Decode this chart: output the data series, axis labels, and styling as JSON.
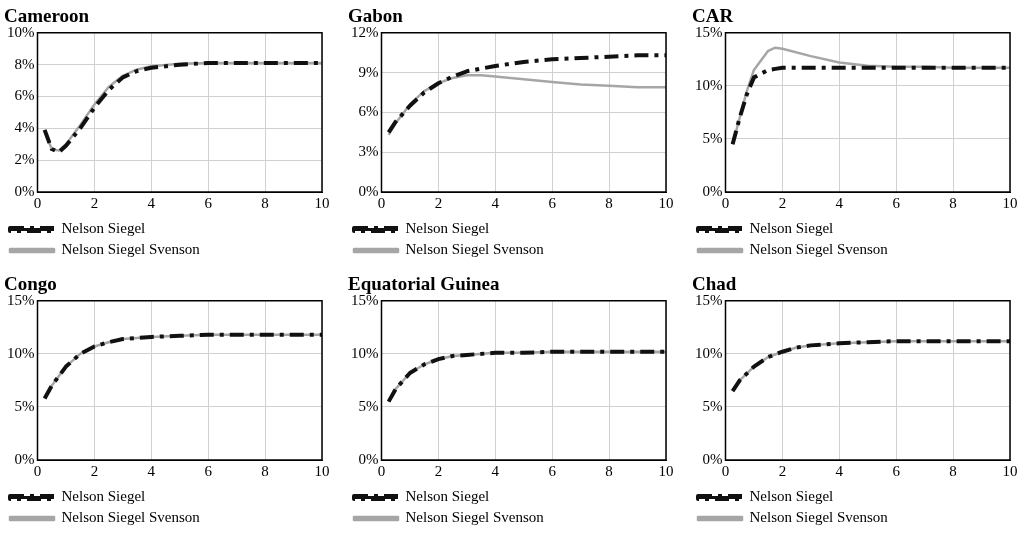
{
  "chart_data": [
    {
      "type": "line",
      "title": "Cameroon",
      "x": [
        0.25,
        0.5,
        0.75,
        1,
        1.5,
        2,
        2.5,
        3,
        3.5,
        4,
        5,
        6,
        7,
        8,
        9,
        10
      ],
      "xlim": [
        0,
        10
      ],
      "xticks": [
        0,
        2,
        4,
        6,
        8,
        10
      ],
      "ylim": [
        0,
        10
      ],
      "yticks": [
        {
          "value": 0,
          "label": "0%"
        },
        {
          "value": 2,
          "label": "2%"
        },
        {
          "value": 4,
          "label": "4%"
        },
        {
          "value": 6,
          "label": "6%"
        },
        {
          "value": 8,
          "label": "8%"
        },
        {
          "value": 10,
          "label": "10%"
        }
      ],
      "grid": true,
      "legend": "bottom",
      "series": [
        {
          "name": "Nelson Siegel",
          "color": "#111111",
          "line_style": "dashed",
          "values": [
            3.9,
            2.7,
            2.5,
            2.9,
            4.0,
            5.3,
            6.4,
            7.2,
            7.6,
            7.8,
            8.0,
            8.1,
            8.1,
            8.1,
            8.1,
            8.1
          ]
        },
        {
          "name": "Nelson Siegel Svenson",
          "color": "#a6a6a6",
          "line_style": "solid",
          "values": [
            3.8,
            2.7,
            2.6,
            3.0,
            4.2,
            5.5,
            6.6,
            7.3,
            7.7,
            7.9,
            8.05,
            8.1,
            8.1,
            8.1,
            8.1,
            8.1
          ]
        }
      ]
    },
    {
      "type": "line",
      "title": "Gabon",
      "x": [
        0.25,
        0.5,
        1,
        1.5,
        2,
        2.5,
        3,
        3.5,
        4,
        5,
        6,
        7,
        8,
        9,
        10
      ],
      "xlim": [
        0,
        10
      ],
      "xticks": [
        0,
        2,
        4,
        6,
        8,
        10
      ],
      "ylim": [
        0,
        12
      ],
      "yticks": [
        {
          "value": 0,
          "label": "0%"
        },
        {
          "value": 3,
          "label": "3%"
        },
        {
          "value": 6,
          "label": "6%"
        },
        {
          "value": 9,
          "label": "9%"
        },
        {
          "value": 12,
          "label": "12%"
        }
      ],
      "grid": true,
      "legend": "bottom",
      "series": [
        {
          "name": "Nelson Siegel",
          "color": "#111111",
          "line_style": "dashed",
          "values": [
            4.5,
            5.3,
            6.5,
            7.5,
            8.2,
            8.7,
            9.1,
            9.3,
            9.5,
            9.8,
            10.0,
            10.1,
            10.2,
            10.3,
            10.3
          ]
        },
        {
          "name": "Nelson Siegel Svenson",
          "color": "#a6a6a6",
          "line_style": "solid",
          "values": [
            4.3,
            5.2,
            6.6,
            7.6,
            8.2,
            8.6,
            8.8,
            8.8,
            8.7,
            8.5,
            8.3,
            8.1,
            8.0,
            7.9,
            7.9
          ]
        }
      ]
    },
    {
      "type": "line",
      "title": "CAR",
      "x": [
        0.25,
        0.5,
        0.75,
        1,
        1.5,
        1.75,
        2,
        3,
        4,
        5,
        6,
        7,
        8,
        9,
        10
      ],
      "xlim": [
        0,
        10
      ],
      "xticks": [
        0,
        2,
        4,
        6,
        8,
        10
      ],
      "ylim": [
        0,
        15
      ],
      "yticks": [
        {
          "value": 0,
          "label": "0%"
        },
        {
          "value": 5,
          "label": "5%"
        },
        {
          "value": 10,
          "label": "10%"
        },
        {
          "value": 15,
          "label": "15%"
        }
      ],
      "grid": true,
      "legend": "bottom",
      "series": [
        {
          "name": "Nelson Siegel",
          "color": "#111111",
          "line_style": "dashed",
          "values": [
            4.5,
            7.0,
            9.2,
            10.8,
            11.5,
            11.6,
            11.7,
            11.7,
            11.7,
            11.7,
            11.7,
            11.7,
            11.7,
            11.7,
            11.7
          ]
        },
        {
          "name": "Nelson Siegel Svenson",
          "color": "#a6a6a6",
          "line_style": "solid",
          "values": [
            4.5,
            7.0,
            9.5,
            11.5,
            13.3,
            13.6,
            13.5,
            12.8,
            12.2,
            11.9,
            11.8,
            11.8,
            11.7,
            11.7,
            11.7
          ]
        }
      ]
    },
    {
      "type": "line",
      "title": "Congo",
      "x": [
        0.25,
        0.5,
        1,
        1.5,
        2,
        2.5,
        3,
        4,
        5,
        6,
        7,
        8,
        9,
        10
      ],
      "xlim": [
        0,
        10
      ],
      "xticks": [
        0,
        2,
        4,
        6,
        8,
        10
      ],
      "ylim": [
        0,
        15
      ],
      "yticks": [
        {
          "value": 0,
          "label": "0%"
        },
        {
          "value": 5,
          "label": "5%"
        },
        {
          "value": 10,
          "label": "10%"
        },
        {
          "value": 15,
          "label": "15%"
        }
      ],
      "grid": true,
      "legend": "bottom",
      "series": [
        {
          "name": "Nelson Siegel",
          "color": "#111111",
          "line_style": "dashed",
          "values": [
            5.8,
            7.0,
            8.8,
            10.0,
            10.7,
            11.1,
            11.4,
            11.6,
            11.7,
            11.8,
            11.8,
            11.8,
            11.8,
            11.8
          ]
        },
        {
          "name": "Nelson Siegel Svenson",
          "color": "#a6a6a6",
          "line_style": "solid",
          "values": [
            5.8,
            7.0,
            8.8,
            10.0,
            10.7,
            11.1,
            11.4,
            11.6,
            11.7,
            11.8,
            11.8,
            11.8,
            11.8,
            11.8
          ]
        }
      ]
    },
    {
      "type": "line",
      "title": "Equatorial Guinea",
      "x": [
        0.25,
        0.5,
        1,
        1.5,
        2,
        2.5,
        3,
        4,
        5,
        6,
        7,
        8,
        9,
        10
      ],
      "xlim": [
        0,
        10
      ],
      "xticks": [
        0,
        2,
        4,
        6,
        8,
        10
      ],
      "ylim": [
        0,
        15
      ],
      "yticks": [
        {
          "value": 0,
          "label": "0%"
        },
        {
          "value": 5,
          "label": "5%"
        },
        {
          "value": 10,
          "label": "10%"
        },
        {
          "value": 15,
          "label": "15%"
        }
      ],
      "grid": true,
      "legend": "bottom",
      "series": [
        {
          "name": "Nelson Siegel",
          "color": "#111111",
          "line_style": "dashed",
          "values": [
            5.5,
            6.7,
            8.2,
            9.0,
            9.5,
            9.8,
            9.9,
            10.1,
            10.1,
            10.2,
            10.2,
            10.2,
            10.2,
            10.2
          ]
        },
        {
          "name": "Nelson Siegel Svenson",
          "color": "#a6a6a6",
          "line_style": "solid",
          "values": [
            5.5,
            6.7,
            8.2,
            9.0,
            9.5,
            9.8,
            9.9,
            10.1,
            10.1,
            10.2,
            10.2,
            10.2,
            10.2,
            10.2
          ]
        }
      ]
    },
    {
      "type": "line",
      "title": "Chad",
      "x": [
        0.25,
        0.5,
        1,
        1.5,
        2,
        2.5,
        3,
        4,
        5,
        6,
        7,
        8,
        9,
        10
      ],
      "xlim": [
        0,
        10
      ],
      "xticks": [
        0,
        2,
        4,
        6,
        8,
        10
      ],
      "ylim": [
        0,
        15
      ],
      "yticks": [
        {
          "value": 0,
          "label": "0%"
        },
        {
          "value": 5,
          "label": "5%"
        },
        {
          "value": 10,
          "label": "10%"
        },
        {
          "value": 15,
          "label": "15%"
        }
      ],
      "grid": true,
      "legend": "bottom",
      "series": [
        {
          "name": "Nelson Siegel",
          "color": "#111111",
          "line_style": "dashed",
          "values": [
            6.5,
            7.5,
            8.8,
            9.7,
            10.2,
            10.6,
            10.8,
            11.0,
            11.1,
            11.2,
            11.2,
            11.2,
            11.2,
            11.2
          ]
        },
        {
          "name": "Nelson Siegel Svenson",
          "color": "#a6a6a6",
          "line_style": "solid",
          "values": [
            6.5,
            7.5,
            8.8,
            9.7,
            10.2,
            10.6,
            10.8,
            11.0,
            11.1,
            11.2,
            11.2,
            11.2,
            11.2,
            11.2
          ]
        }
      ]
    }
  ]
}
